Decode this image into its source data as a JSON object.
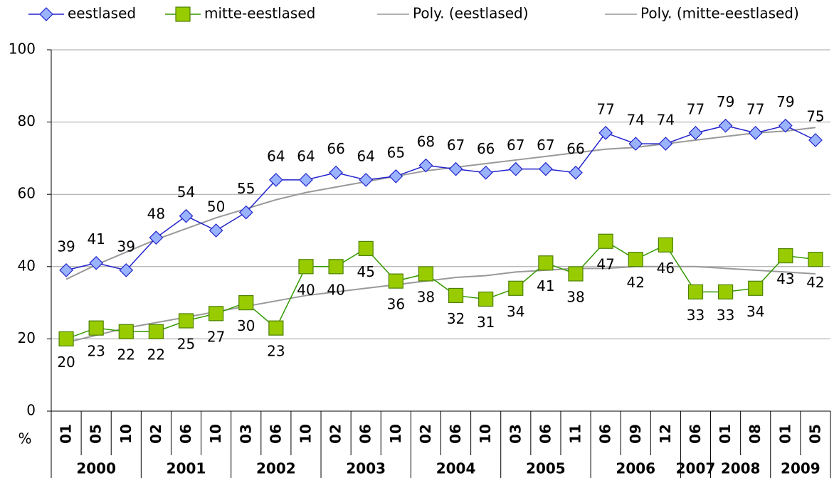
{
  "chart_data": {
    "type": "line",
    "y_label": "%",
    "groups": [
      {
        "name": "2000",
        "categories": [
          "01",
          "05",
          "10"
        ]
      },
      {
        "name": "2001",
        "categories": [
          "02",
          "06",
          "10"
        ]
      },
      {
        "name": "2002",
        "categories": [
          "03",
          "06",
          "10"
        ]
      },
      {
        "name": "2003",
        "categories": [
          "02",
          "06",
          "10"
        ]
      },
      {
        "name": "2004",
        "categories": [
          "02",
          "06",
          "10"
        ]
      },
      {
        "name": "2005",
        "categories": [
          "03",
          "06",
          "11"
        ]
      },
      {
        "name": "2006",
        "categories": [
          "06",
          "09",
          "12"
        ]
      },
      {
        "name": "2007",
        "categories": [
          "06"
        ]
      },
      {
        "name": "2008",
        "categories": [
          "01",
          "08"
        ]
      },
      {
        "name": "2009",
        "categories": [
          "01",
          "05"
        ]
      }
    ],
    "series": [
      {
        "name": "eestlased",
        "color": "#2222cc",
        "marker": "diamond",
        "marker_fill": "#99b3ff",
        "label_color": "#1a1a80",
        "label_position": "above",
        "values": [
          39,
          41,
          39,
          48,
          54,
          50,
          55,
          64,
          64,
          66,
          64,
          65,
          68,
          67,
          66,
          67,
          67,
          66,
          77,
          74,
          74,
          77,
          79,
          77,
          79,
          75
        ]
      },
      {
        "name": "mitte-eestlased",
        "color": "#339900",
        "marker": "square",
        "marker_fill": "#99cc00",
        "label_color": "#339933",
        "label_position": "below",
        "values": [
          20,
          23,
          22,
          22,
          25,
          27,
          30,
          23,
          40,
          40,
          45,
          36,
          38,
          32,
          31,
          34,
          41,
          38,
          47,
          42,
          46,
          33,
          33,
          34,
          43,
          42
        ]
      },
      {
        "name": "Poly. (eestlased)",
        "color": "#999999",
        "marker": "none",
        "values": [
          36.5,
          40.5,
          44,
          47.5,
          50.5,
          53.5,
          56,
          58.5,
          60.5,
          62,
          63.5,
          65,
          66.5,
          67.5,
          68.5,
          69.5,
          70.5,
          71.5,
          72.5,
          73,
          74,
          75,
          76,
          77,
          77.5,
          78.5
        ]
      },
      {
        "name": "Poly. (mitte-eestlased)",
        "color": "#999999",
        "marker": "none",
        "values": [
          19,
          21,
          23,
          24.5,
          26,
          27.5,
          29,
          30.5,
          32,
          33,
          34,
          35,
          36,
          37,
          37.5,
          38.5,
          39,
          39.5,
          39.5,
          40,
          40,
          40,
          39.5,
          39,
          38.5,
          38
        ]
      }
    ],
    "ylim": [
      0,
      100
    ],
    "yticks": [
      0,
      20,
      40,
      60,
      80,
      100
    ],
    "grid": true
  }
}
